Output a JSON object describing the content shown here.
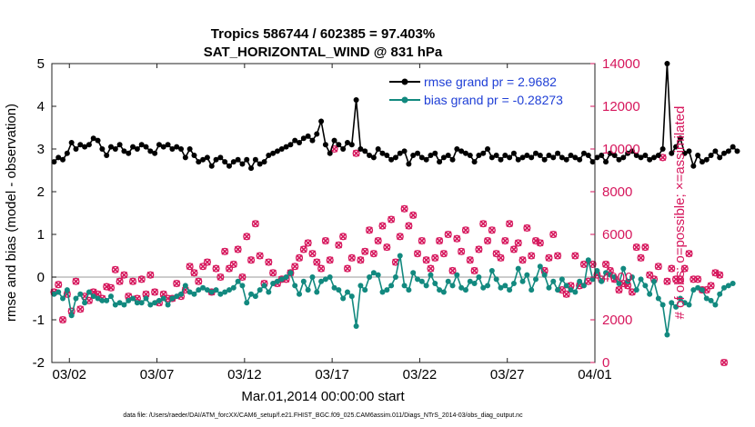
{
  "chart_data": {
    "type": "line",
    "title": "Tropics 586744 / 602385 = 97.403%",
    "subtitle": "SAT_HORIZONTAL_WIND @ 831 hPa",
    "xlabel": "Mar.01,2014 00:00:00 start",
    "ylabel": "rmse and bias (model - observation)",
    "y2label": "# of obs: o=possible; ×=assimilated",
    "ylim": [
      -2,
      5
    ],
    "y2lim": [
      0,
      14000
    ],
    "yticks": [
      "-2",
      "-1",
      "0",
      "1",
      "2",
      "3",
      "4",
      "5"
    ],
    "y2ticks": [
      "0",
      "2000",
      "4000",
      "6000",
      "8000",
      "10000",
      "12000",
      "14000"
    ],
    "xticks": [
      {
        "day": 2,
        "label": "03/02"
      },
      {
        "day": 7,
        "label": "03/07"
      },
      {
        "day": 12,
        "label": "03/12"
      },
      {
        "day": 17,
        "label": "03/17"
      },
      {
        "day": 22,
        "label": "03/22"
      },
      {
        "day": 27,
        "label": "03/27"
      },
      {
        "day": 32,
        "label": "04/01"
      }
    ],
    "xlim": [
      1,
      32
    ],
    "points_per_day": 4,
    "series": [
      {
        "name": "rmse grand pr = 2.9682",
        "color": "#000000",
        "values": [
          2.7,
          2.8,
          2.75,
          2.9,
          3.15,
          3.0,
          3.1,
          3.05,
          3.1,
          3.25,
          3.2,
          3.0,
          2.85,
          3.05,
          3.0,
          3.1,
          2.95,
          2.9,
          3.05,
          3.0,
          3.1,
          3.05,
          2.95,
          2.9,
          3.1,
          3.05,
          3.1,
          3.0,
          3.05,
          3.0,
          2.8,
          3.0,
          2.85,
          2.7,
          2.75,
          2.8,
          2.6,
          2.75,
          2.8,
          2.7,
          2.6,
          2.7,
          2.75,
          2.65,
          2.75,
          2.55,
          2.75,
          2.65,
          2.7,
          2.85,
          2.9,
          2.95,
          3.0,
          3.05,
          3.1,
          3.2,
          3.15,
          3.25,
          3.3,
          3.2,
          3.35,
          3.65,
          3.1,
          2.9,
          3.2,
          3.1,
          3.0,
          3.15,
          3.1,
          4.15,
          3.0,
          2.95,
          2.85,
          2.8,
          3.0,
          2.9,
          2.85,
          2.75,
          2.8,
          2.9,
          2.95,
          2.65,
          2.85,
          2.9,
          2.8,
          2.75,
          2.85,
          2.9,
          2.7,
          2.8,
          2.85,
          2.75,
          3.0,
          2.95,
          2.9,
          2.85,
          2.7,
          2.85,
          2.9,
          3.0,
          2.8,
          2.85,
          2.75,
          2.85,
          2.8,
          2.9,
          2.75,
          2.8,
          2.85,
          2.8,
          2.9,
          2.85,
          2.75,
          2.85,
          2.8,
          2.9,
          2.8,
          2.75,
          2.85,
          2.8,
          2.75,
          2.9,
          2.85,
          2.7,
          2.8,
          2.85,
          2.7,
          2.9,
          2.85,
          2.75,
          2.8,
          2.9,
          2.95,
          2.85,
          2.8,
          2.85,
          2.75,
          2.8,
          2.85,
          3.0,
          5.0,
          2.9,
          3.05,
          3.25,
          2.9,
          2.95,
          2.6,
          2.85,
          2.7,
          2.75,
          2.85,
          2.95,
          2.8,
          2.9,
          2.95,
          3.05,
          2.95
        ]
      },
      {
        "name": "bias grand pr = -0.28273",
        "color": "#12897f",
        "values": [
          -0.4,
          -0.35,
          -0.5,
          -0.3,
          -0.9,
          -0.5,
          -0.4,
          -0.6,
          -0.35,
          -0.45,
          -0.5,
          -0.55,
          -0.55,
          -0.45,
          -0.65,
          -0.6,
          -0.65,
          -0.55,
          -0.5,
          -0.6,
          -0.6,
          -0.5,
          -0.65,
          -0.6,
          -0.55,
          -0.5,
          -0.65,
          -0.5,
          -0.45,
          -0.4,
          -0.2,
          -0.35,
          -0.4,
          -0.3,
          -0.25,
          -0.3,
          -0.35,
          -0.3,
          -0.4,
          -0.35,
          -0.3,
          -0.25,
          -0.1,
          -0.2,
          -0.6,
          -0.4,
          -0.45,
          -0.3,
          -0.2,
          -0.35,
          -0.15,
          -0.1,
          -0.05,
          0.0,
          0.1,
          -0.2,
          -0.4,
          -0.1,
          -0.3,
          0.0,
          -0.35,
          -0.1,
          -0.05,
          0.0,
          -0.25,
          -0.3,
          -0.5,
          -0.35,
          -0.45,
          -1.15,
          -0.2,
          -0.3,
          0.0,
          0.1,
          0.05,
          -0.35,
          -0.3,
          -0.2,
          0.0,
          0.5,
          -0.2,
          -0.3,
          0.1,
          -0.05,
          -0.1,
          -0.2,
          0.05,
          -0.15,
          -0.3,
          -0.35,
          -0.1,
          -0.2,
          0.05,
          -0.25,
          -0.3,
          -0.1,
          -0.15,
          0.0,
          -0.25,
          -0.2,
          0.15,
          -0.05,
          -0.25,
          -0.2,
          -0.3,
          -0.15,
          0.2,
          -0.1,
          0.05,
          -0.3,
          -0.05,
          0.25,
          0.05,
          -0.25,
          -0.1,
          -0.3,
          -0.05,
          -0.2,
          -0.3,
          -0.35,
          -0.1,
          -0.2,
          0.4,
          -0.05,
          0.15,
          -0.1,
          0.1,
          0.05,
          0.0,
          -0.15,
          0.2,
          -0.1,
          0.0,
          -0.3,
          -0.05,
          -0.2,
          -0.4,
          -0.1,
          -0.5,
          -0.65,
          -1.35,
          -0.6,
          -0.7,
          -0.5,
          -0.6,
          -0.65,
          -0.3,
          -0.25,
          -0.3,
          -0.5,
          -0.55,
          -0.65,
          -0.4,
          -0.25,
          -0.2,
          -0.15
        ]
      }
    ],
    "obs_possible": [
      3300,
      3650,
      2000,
      3200,
      2400,
      3800,
      2500,
      3100,
      2900,
      3300,
      3200,
      3000,
      3550,
      3500,
      4350,
      3800,
      4100,
      3100,
      3800,
      3000,
      3900,
      3200,
      4100,
      3300,
      2800,
      3200,
      3000,
      3000,
      3700,
      3100,
      3400,
      4500,
      4200,
      3800,
      4500,
      4700,
      3300,
      4400,
      4000,
      5200,
      4400,
      4600,
      5300,
      4000,
      5900,
      4800,
      6500,
      5000,
      3700,
      4700,
      4200,
      3700,
      3900,
      3900,
      4200,
      4500,
      4900,
      5300,
      5600,
      5100,
      4700,
      4400,
      5700,
      4800,
      10000,
      5500,
      5900,
      4400,
      4900,
      9800,
      4800,
      5200,
      6200,
      5100,
      5700,
      6400,
      5400,
      6700,
      4700,
      5900,
      7200,
      6400,
      6900,
      5100,
      5700,
      4800,
      4400,
      4900,
      5700,
      5100,
      6000,
      4300,
      5800,
      5200,
      6200,
      4800,
      4300,
      5300,
      6500,
      5700,
      6200,
      5100,
      4900,
      5700,
      6500,
      5300,
      5600,
      4800,
      6300,
      5000,
      5700,
      5600,
      4300,
      4900,
      6000,
      5000,
      3400,
      3200,
      3600,
      5000,
      3600,
      4600,
      3800,
      4600,
      4100,
      3900,
      4600,
      4300,
      3900,
      3400,
      3700,
      3600,
      3300,
      5400,
      4900,
      5400,
      4100,
      3900,
      4500,
      9600,
      3800,
      4400,
      3900,
      3900,
      4400,
      5100,
      3900,
      3900,
      3400,
      3400,
      3600,
      4200,
      4100,
      0
    ]
  },
  "footer": "data file: /Users/raeder/DAI/ATM_forcXX/CAM6_setup/f.e21.FHIST_BGC.f09_025.CAM6assim.011/Diags_NTrS_2014-03/obs_diag_output.nc"
}
